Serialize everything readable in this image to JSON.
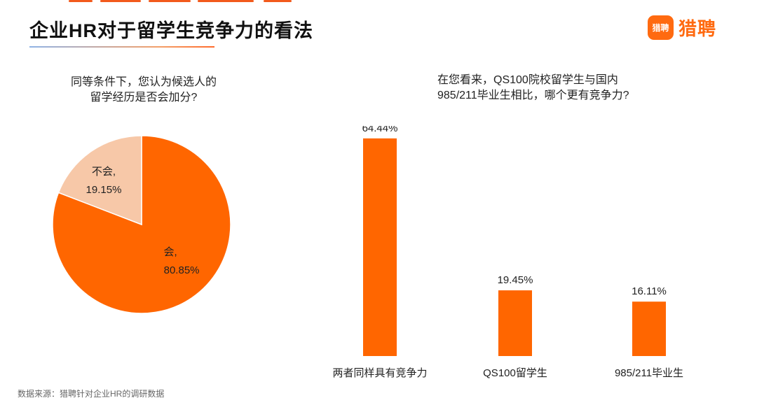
{
  "page": {
    "title": "企业HR对于留学生竞争力的看法",
    "source_note": "数据来源：猎聘针对企业HR的调研数据"
  },
  "brand": {
    "badge_text": "猎聘",
    "name": "猎聘",
    "color": "#ff6a10"
  },
  "colors": {
    "accent": "#ff6600",
    "pie_minor": "#f7c8a8"
  },
  "chart_data": [
    {
      "type": "pie",
      "title": "同等条件下，您认为候选人的\n留学经历是否会加分?",
      "title_lines": [
        "同等条件下，您认为候选人的",
        "留学经历是否会加分?"
      ],
      "slices": [
        {
          "label": "会,",
          "value": 80.85,
          "value_label": "80.85%",
          "color": "#ff6600"
        },
        {
          "label": "不会,",
          "value": 19.15,
          "value_label": "19.15%",
          "color": "#f7c8a8"
        }
      ]
    },
    {
      "type": "bar",
      "title": "在您看来，QS100院校留学生与国内\n985/211毕业生相比，哪个更有竞争力?",
      "title_lines": [
        "在您看来，QS100院校留学生与国内",
        "985/211毕业生相比，哪个更有竞争力?"
      ],
      "categories": [
        "两者同样具有竞争力",
        "QS100留学生",
        "985/211毕业生"
      ],
      "values": [
        64.44,
        19.45,
        16.11
      ],
      "value_labels": [
        "64.44%",
        "19.45%",
        "16.11%"
      ],
      "ylim": [
        0,
        70
      ],
      "color": "#ff6600",
      "grid": false,
      "legend": "none"
    }
  ]
}
